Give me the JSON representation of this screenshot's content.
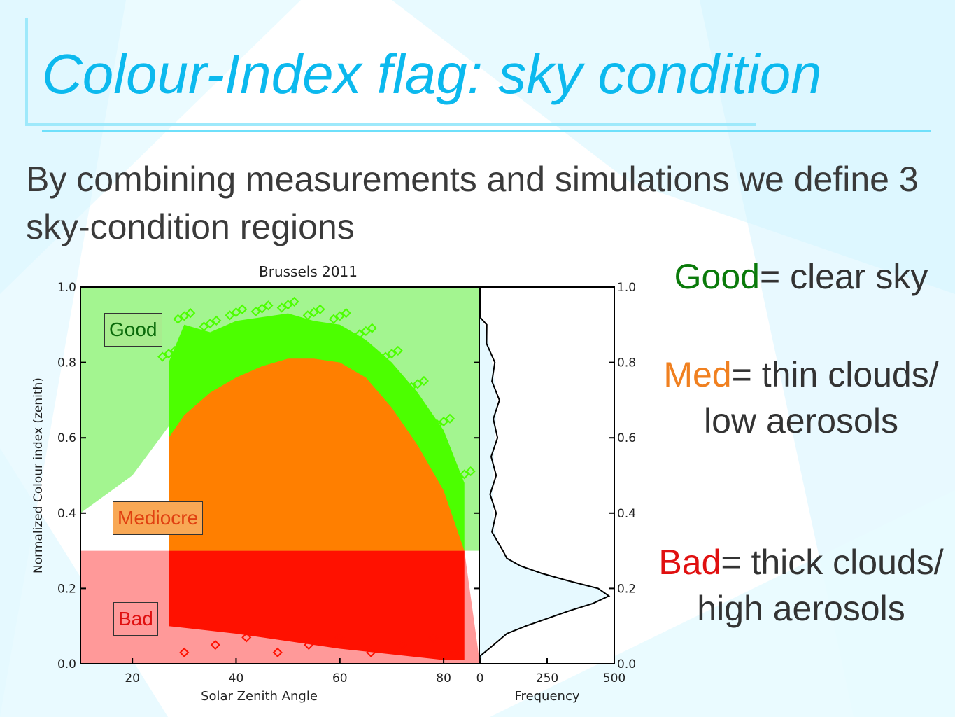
{
  "slide": {
    "title": "Colour-Index flag: sky condition",
    "subtitle": "By combining measurements and simulations we define 3 sky-condition regions",
    "accent_color": "#0cb9ee"
  },
  "legend": {
    "good_word": "Good",
    "good_rest": "= clear sky",
    "med_word": "Med",
    "med_rest": "= thin clouds/ low aerosols",
    "bad_word": "Bad",
    "bad_rest": "= thick clouds/ high aerosols"
  },
  "region_labels": {
    "good": "Good",
    "mediocre": "Mediocre",
    "bad": "Bad"
  },
  "chart_data": [
    {
      "type": "scatter",
      "title": "Brussels 2011",
      "xlabel": "Solar Zenith Angle",
      "ylabel": "Normalized Colour index (zenith)",
      "xlim": [
        10,
        87
      ],
      "ylim": [
        0.0,
        1.0
      ],
      "x_ticks": [
        20,
        40,
        60,
        80
      ],
      "y_ticks": [
        0.0,
        0.2,
        0.4,
        0.6,
        0.8,
        1.0
      ],
      "y_tick_labels": [
        "0.0",
        "0.2",
        "0.4",
        "0.6",
        "0.8",
        "1.0"
      ],
      "regions": [
        {
          "name": "Good",
          "color": "#a3f590"
        },
        {
          "name": "Mediocre",
          "color": "#ffffff"
        },
        {
          "name": "Bad",
          "color": "#ff9999"
        }
      ],
      "good_boundary": {
        "x": [
          10,
          20,
          27
        ],
        "y": [
          0.4,
          0.5,
          0.63
        ]
      },
      "bad_threshold": 0.3,
      "point_groups": [
        {
          "class": "Good",
          "color": "#4cff00"
        },
        {
          "class": "Mediocre",
          "color": "#ff7f00"
        },
        {
          "class": "Bad",
          "color": "#ff1100"
        }
      ],
      "data_envelope": {
        "mediocre_top": {
          "x": [
            27,
            30,
            35,
            40,
            45,
            50,
            55,
            60,
            65,
            70,
            75,
            80,
            84
          ],
          "y": [
            0.6,
            0.66,
            0.72,
            0.76,
            0.79,
            0.81,
            0.81,
            0.8,
            0.76,
            0.68,
            0.58,
            0.46,
            0.3
          ]
        },
        "good_top": {
          "x": [
            27,
            30,
            35,
            40,
            45,
            50,
            55,
            60,
            65,
            70,
            75,
            80,
            84
          ],
          "y": [
            0.8,
            0.9,
            0.88,
            0.91,
            0.92,
            0.93,
            0.91,
            0.9,
            0.86,
            0.8,
            0.72,
            0.62,
            0.48
          ]
        },
        "bad_bottom": {
          "x": [
            27,
            40,
            60,
            80,
            84
          ],
          "y": [
            0.1,
            0.08,
            0.04,
            0.01,
            0.01
          ]
        }
      }
    },
    {
      "type": "line",
      "xlabel": "Frequency",
      "xlim": [
        0,
        500
      ],
      "x_ticks": [
        0,
        250,
        500
      ],
      "ylim": [
        0.0,
        1.0
      ],
      "y_ticks": [
        0.0,
        0.2,
        0.4,
        0.6,
        0.8,
        1.0
      ],
      "y_tick_labels": [
        "0.0",
        "0.2",
        "0.4",
        "0.6",
        "0.8",
        "1.0"
      ],
      "series": [
        {
          "y": [
            0.0,
            0.02,
            0.05,
            0.08,
            0.1,
            0.12,
            0.14,
            0.16,
            0.18,
            0.2,
            0.22,
            0.24,
            0.26,
            0.28,
            0.3,
            0.35,
            0.4,
            0.45,
            0.5,
            0.55,
            0.6,
            0.65,
            0.7,
            0.75,
            0.8,
            0.85,
            0.9,
            0.92
          ],
          "freq": [
            0,
            10,
            40,
            100,
            170,
            250,
            330,
            420,
            480,
            440,
            330,
            230,
            150,
            100,
            75,
            55,
            50,
            48,
            50,
            52,
            55,
            60,
            62,
            55,
            45,
            35,
            15,
            0
          ]
        }
      ]
    }
  ]
}
